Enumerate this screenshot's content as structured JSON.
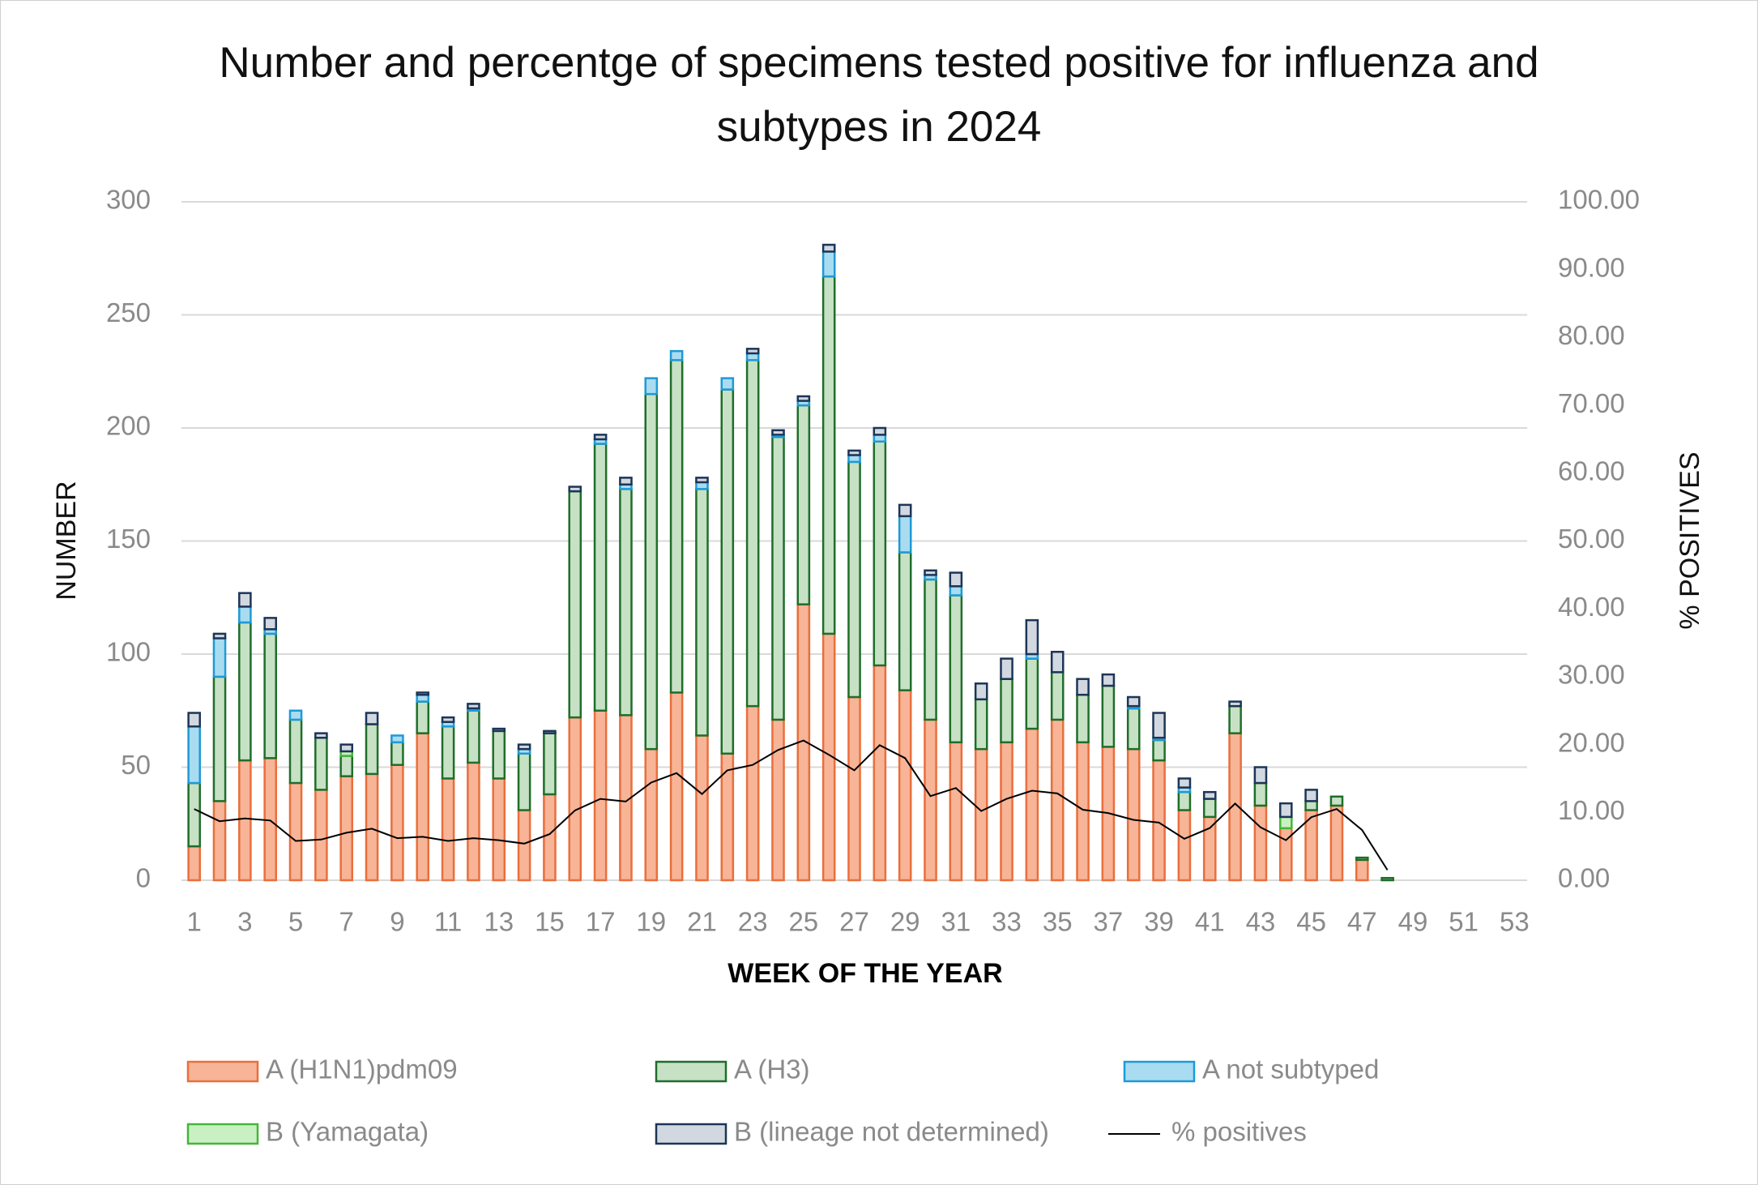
{
  "chart_data": {
    "type": "stacked-bar-line",
    "title": "Number and percentge of specimens tested  positive  for influenza and subtypes in 2024",
    "x_label": "WEEK OF THE YEAR",
    "y_label": "NUMBER",
    "y2_label": "% POSITIVES",
    "categories": [
      "1",
      null,
      "3",
      null,
      "5",
      null,
      "7",
      null,
      "9",
      null,
      "11",
      null,
      "13",
      null,
      "15",
      null,
      "17",
      null,
      "19",
      null,
      "21",
      null,
      "23",
      null,
      "25",
      null,
      "27",
      null,
      "29",
      null,
      "31",
      null,
      "33",
      null,
      "35",
      null,
      "37",
      null,
      "39",
      null,
      "41",
      null,
      "43",
      null,
      "45",
      null,
      "47",
      null,
      "49",
      null,
      "51",
      null,
      "53"
    ],
    "ylim": [
      0,
      300
    ],
    "yticks": [
      0,
      50,
      100,
      150,
      200,
      250,
      300
    ],
    "y2lim": [
      0,
      100
    ],
    "y2ticks": [
      {
        "value": 0,
        "label": "0.00"
      },
      {
        "value": 10,
        "label": "10.00"
      },
      {
        "value": 20,
        "label": "20.00"
      },
      {
        "value": 30,
        "label": "30.00"
      },
      {
        "value": 40,
        "label": "40.00"
      },
      {
        "value": 50,
        "label": "50.00"
      },
      {
        "value": 60,
        "label": "60.00"
      },
      {
        "value": 70,
        "label": "70.00"
      },
      {
        "value": 80,
        "label": "80.00"
      },
      {
        "value": 90,
        "label": "90.00"
      },
      {
        "value": 100,
        "label": "100.00"
      }
    ],
    "grid": true,
    "legend": "bottom",
    "series": [
      {
        "name": "A (H1N1)pdm09",
        "color": "#f7b497",
        "stroke": "#e96f3c",
        "values": [
          15,
          35,
          53,
          54,
          43,
          40,
          46,
          47,
          51,
          65,
          45,
          52,
          45,
          31,
          38,
          72,
          75,
          73,
          58,
          83,
          64,
          56,
          77,
          71,
          122,
          109,
          81,
          95,
          84,
          71,
          61,
          58,
          61,
          67,
          71,
          61,
          59,
          58,
          53,
          31,
          28,
          65,
          33,
          23,
          31,
          33,
          9,
          0,
          null,
          null,
          null,
          null,
          null
        ]
      },
      {
        "name": "A (H3)",
        "color": "#c7e1c5",
        "stroke": "#1f6e2a",
        "values": [
          28,
          55,
          61,
          55,
          28,
          23,
          9,
          22,
          10,
          14,
          23,
          23,
          21,
          25,
          27,
          100,
          118,
          100,
          157,
          147,
          109,
          161,
          153,
          125,
          88,
          158,
          104,
          99,
          61,
          62,
          65,
          22,
          28,
          31,
          21,
          21,
          27,
          18,
          9,
          8,
          8,
          12,
          10,
          0,
          4,
          4,
          1,
          1,
          null,
          null,
          null,
          null,
          null
        ]
      },
      {
        "name": "A not subtyped",
        "color": "#a9dcf1",
        "stroke": "#1d9ad6",
        "values": [
          25,
          17,
          7,
          2,
          4,
          0,
          0,
          0,
          3,
          3,
          2,
          1,
          0,
          2,
          0,
          0,
          2,
          2,
          7,
          4,
          3,
          5,
          3,
          1,
          2,
          11,
          3,
          3,
          16,
          2,
          4,
          0,
          0,
          2,
          0,
          0,
          0,
          1,
          1,
          2,
          0,
          0,
          0,
          0,
          0,
          0,
          0,
          0,
          null,
          null,
          null,
          null,
          null
        ]
      },
      {
        "name": "B (Yamagata)",
        "color": "#c9f0c2",
        "stroke": "#46b538",
        "values": [
          0,
          0,
          0,
          0,
          0,
          0,
          2,
          0,
          0,
          0,
          0,
          0,
          0,
          0,
          0,
          0,
          0,
          0,
          0,
          0,
          0,
          0,
          0,
          0,
          0,
          0,
          0,
          0,
          0,
          0,
          0,
          0,
          0,
          0,
          0,
          0,
          0,
          0,
          0,
          0,
          0,
          0,
          0,
          5,
          0,
          0,
          0,
          0,
          null,
          null,
          null,
          null,
          null
        ]
      },
      {
        "name": "B (lineage not determined)",
        "color": "#d2d8e0",
        "stroke": "#1c3557",
        "values": [
          6,
          2,
          6,
          5,
          0,
          2,
          3,
          5,
          0,
          1,
          2,
          2,
          1,
          2,
          1,
          2,
          2,
          3,
          0,
          0,
          2,
          0,
          2,
          2,
          2,
          3,
          2,
          3,
          5,
          2,
          6,
          7,
          9,
          15,
          9,
          7,
          5,
          4,
          11,
          4,
          3,
          2,
          7,
          6,
          5,
          0,
          0,
          0,
          null,
          null,
          null,
          null,
          null
        ]
      },
      {
        "name": "% positives",
        "color": "#000000",
        "axis": "y2",
        "values": [
          10.5,
          8.7,
          9.1,
          8.8,
          5.8,
          6.0,
          7.0,
          7.6,
          6.2,
          6.4,
          5.8,
          6.2,
          5.9,
          5.4,
          6.8,
          10.3,
          12.0,
          11.6,
          14.4,
          15.8,
          12.7,
          16.2,
          17.0,
          19.2,
          20.6,
          18.5,
          16.2,
          19.9,
          18.0,
          12.4,
          13.6,
          10.2,
          12.0,
          13.2,
          12.8,
          10.4,
          9.9,
          8.9,
          8.5,
          6.1,
          7.7,
          11.3,
          7.8,
          5.9,
          9.3,
          10.5,
          7.4,
          1.5,
          null,
          null,
          null,
          null,
          null
        ]
      }
    ]
  }
}
